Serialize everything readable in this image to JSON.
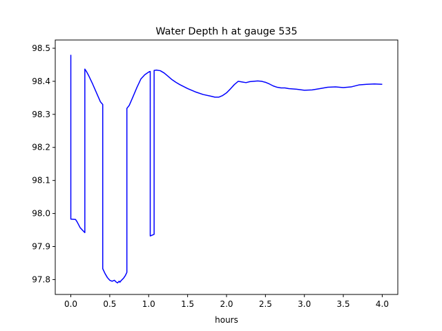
{
  "chart_data": {
    "type": "line",
    "title": "Water Depth h at gauge 535",
    "xlabel": "hours",
    "ylabel": "",
    "xlim": [
      -0.2,
      4.2
    ],
    "ylim": [
      97.755,
      98.525
    ],
    "xticks": [
      0.0,
      0.5,
      1.0,
      1.5,
      2.0,
      2.5,
      3.0,
      3.5,
      4.0
    ],
    "xtick_labels": [
      "0.0",
      "0.5",
      "1.0",
      "1.5",
      "2.0",
      "2.5",
      "3.0",
      "3.5",
      "4.0"
    ],
    "yticks": [
      97.8,
      97.9,
      98.0,
      98.1,
      98.2,
      98.3,
      98.4,
      98.5
    ],
    "ytick_labels": [
      "97.8",
      "97.9",
      "98.0",
      "98.1",
      "98.2",
      "98.3",
      "98.4",
      "98.5"
    ],
    "grid": false,
    "series": [
      {
        "name": "",
        "color": "#0000ff",
        "x": [
          0.0,
          0.0,
          0.06,
          0.08,
          0.12,
          0.18,
          0.18,
          0.2,
          0.23,
          0.28,
          0.33,
          0.38,
          0.41,
          0.41,
          0.44,
          0.47,
          0.5,
          0.53,
          0.56,
          0.58,
          0.6,
          0.62,
          0.63,
          0.65,
          0.66,
          0.68,
          0.7,
          0.72,
          0.72,
          0.75,
          0.8,
          0.85,
          0.9,
          0.95,
          1.0,
          1.02,
          1.02,
          1.07,
          1.07,
          1.1,
          1.15,
          1.2,
          1.25,
          1.3,
          1.35,
          1.4,
          1.5,
          1.6,
          1.7,
          1.8,
          1.85,
          1.9,
          1.95,
          2.0,
          2.05,
          2.1,
          2.15,
          2.2,
          2.25,
          2.3,
          2.35,
          2.4,
          2.45,
          2.5,
          2.55,
          2.6,
          2.65,
          2.7,
          2.75,
          2.8,
          2.9,
          3.0,
          3.1,
          3.2,
          3.3,
          3.4,
          3.5,
          3.6,
          3.7,
          3.8,
          3.9,
          4.0
        ],
        "y": [
          98.48,
          97.983,
          97.982,
          97.975,
          97.957,
          97.942,
          98.437,
          98.43,
          98.417,
          98.392,
          98.365,
          98.338,
          98.33,
          97.833,
          97.818,
          97.806,
          97.798,
          97.795,
          97.798,
          97.793,
          97.79,
          97.795,
          97.792,
          97.798,
          97.8,
          97.805,
          97.812,
          97.822,
          98.318,
          98.327,
          98.354,
          98.382,
          98.407,
          98.42,
          98.428,
          98.43,
          97.932,
          97.937,
          98.433,
          98.434,
          98.432,
          98.425,
          98.415,
          98.405,
          98.397,
          98.39,
          98.378,
          98.368,
          98.36,
          98.355,
          98.352,
          98.352,
          98.357,
          98.365,
          98.377,
          98.39,
          98.4,
          98.398,
          98.396,
          98.399,
          98.4,
          98.401,
          98.4,
          98.397,
          98.392,
          98.386,
          98.382,
          98.38,
          98.38,
          98.378,
          98.376,
          98.373,
          98.374,
          98.378,
          98.382,
          98.383,
          98.381,
          98.383,
          98.389,
          98.391,
          98.392,
          98.391
        ]
      }
    ]
  }
}
